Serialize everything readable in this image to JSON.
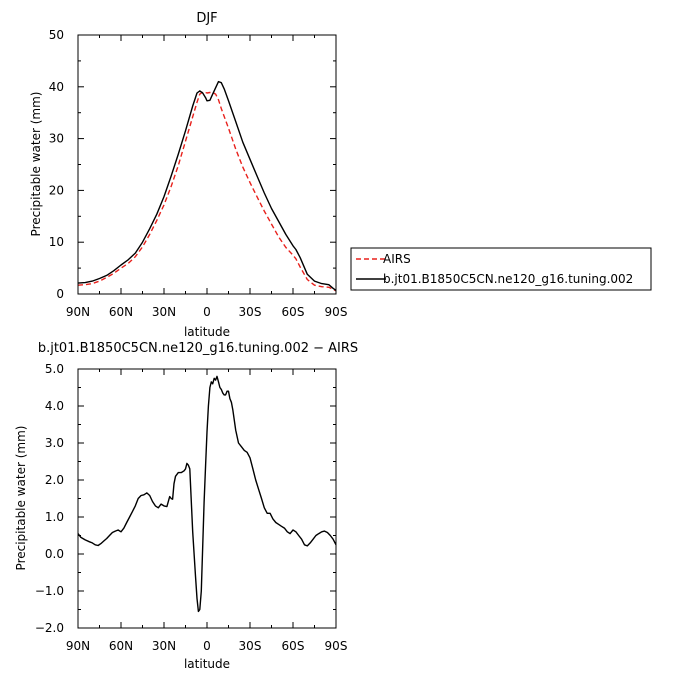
{
  "chart_data": [
    {
      "type": "line",
      "title": "DJF",
      "xlabel": "latitude",
      "ylabel": "Precipitable water  (mm)",
      "x_tick_labels": [
        "90N",
        "60N",
        "30N",
        "0",
        "30S",
        "60S",
        "90S"
      ],
      "x_tick_values": [
        90,
        60,
        30,
        0,
        -30,
        -60,
        -90
      ],
      "xlim": [
        90,
        -90
      ],
      "ylim": [
        0,
        50
      ],
      "y_ticks": [
        "0",
        "10",
        "20",
        "30",
        "40",
        "50"
      ],
      "legend_position": "right",
      "series": [
        {
          "name": "AIRS",
          "color": "#e8211c",
          "dash": "dashed",
          "x": [
            90,
            85,
            80,
            75,
            70,
            65,
            60,
            55,
            50,
            45,
            40,
            35,
            30,
            25,
            20,
            15,
            10,
            7,
            5,
            3,
            1,
            0,
            -2,
            -4,
            -6,
            -8,
            -10,
            -15,
            -20,
            -25,
            -30,
            -35,
            -40,
            -45,
            -50,
            -55,
            -60,
            -62,
            -65,
            -70,
            -75,
            -80,
            -85,
            -88,
            -90
          ],
          "y": [
            1.7,
            1.8,
            2.0,
            2.5,
            3.2,
            4.0,
            5.0,
            5.9,
            7.2,
            9.1,
            11.5,
            14.2,
            17.2,
            20.8,
            24.8,
            29.5,
            34.2,
            37.0,
            38.6,
            39.0,
            38.9,
            38.8,
            38.9,
            38.9,
            38.6,
            37.5,
            35.8,
            32.0,
            28.0,
            24.5,
            21.5,
            18.7,
            16.0,
            13.5,
            11.0,
            9.0,
            7.5,
            6.8,
            5.2,
            2.8,
            1.7,
            1.4,
            1.3,
            0.9,
            0.6
          ]
        },
        {
          "name": "b.jt01.B1850C5CN.ne120_g16.tuning.002",
          "color": "#000000",
          "dash": "solid",
          "x": [
            90,
            85,
            80,
            75,
            70,
            65,
            60,
            55,
            50,
            45,
            40,
            35,
            30,
            25,
            20,
            15,
            10,
            7,
            5,
            3,
            1,
            0,
            -2,
            -4,
            -6,
            -8,
            -10,
            -12,
            -15,
            -20,
            -25,
            -30,
            -35,
            -40,
            -45,
            -50,
            -55,
            -60,
            -62,
            -65,
            -70,
            -75,
            -80,
            -85,
            -88,
            -90
          ],
          "y": [
            2.1,
            2.2,
            2.5,
            3.0,
            3.6,
            4.5,
            5.6,
            6.6,
            7.9,
            10.0,
            12.6,
            15.4,
            18.8,
            22.8,
            27.0,
            31.5,
            36.3,
            38.8,
            39.2,
            38.8,
            37.9,
            37.3,
            37.4,
            38.6,
            39.8,
            41.0,
            40.8,
            39.6,
            37.3,
            33.3,
            29.3,
            26.0,
            22.7,
            19.5,
            16.5,
            14.0,
            11.5,
            9.3,
            8.6,
            7.0,
            3.8,
            2.5,
            2.0,
            1.8,
            1.1,
            0.7
          ]
        }
      ]
    },
    {
      "type": "line",
      "title": "b.jt01.B1850C5CN.ne120_g16.tuning.002 − AIRS",
      "xlabel": "latitude",
      "ylabel": "Precipitable water  (mm)",
      "x_tick_labels": [
        "90N",
        "60N",
        "30N",
        "0",
        "30S",
        "60S",
        "90S"
      ],
      "x_tick_values": [
        90,
        60,
        30,
        0,
        -30,
        -60,
        -90
      ],
      "xlim": [
        90,
        -90
      ],
      "ylim": [
        -2,
        5
      ],
      "y_ticks": [
        "−2.0",
        "−1.0",
        "0.0",
        "1.0",
        "2.0",
        "3.0",
        "4.0",
        "5.0"
      ],
      "series": [
        {
          "color": "#000000",
          "dash": "solid",
          "x": [
            90,
            88,
            85,
            82,
            80,
            78,
            76,
            74,
            72,
            70,
            68,
            66,
            64,
            62,
            60,
            58,
            56,
            54,
            52,
            50,
            48,
            46,
            44,
            42,
            40,
            38,
            36,
            34,
            32,
            30,
            28,
            26,
            25,
            24,
            23,
            22,
            20,
            18,
            16,
            15,
            14,
            13,
            12,
            10,
            9,
            8,
            7,
            6,
            5,
            4,
            3,
            2,
            1,
            0,
            -1,
            -2,
            -3,
            -4,
            -5,
            -6,
            -7,
            -8,
            -9,
            -10,
            -11,
            -12,
            -13,
            -14,
            -15,
            -16,
            -17,
            -18,
            -20,
            -22,
            -24,
            -26,
            -28,
            -30,
            -32,
            -34,
            -36,
            -38,
            -40,
            -42,
            -44,
            -46,
            -48,
            -50,
            -52,
            -54,
            -56,
            -58,
            -60,
            -62,
            -64,
            -66,
            -68,
            -70,
            -72,
            -74,
            -76,
            -78,
            -80,
            -82,
            -84,
            -86,
            -88,
            -90
          ],
          "y": [
            0.55,
            0.45,
            0.38,
            0.33,
            0.3,
            0.25,
            0.23,
            0.28,
            0.35,
            0.42,
            0.5,
            0.58,
            0.62,
            0.65,
            0.6,
            0.7,
            0.85,
            1.0,
            1.15,
            1.3,
            1.5,
            1.58,
            1.6,
            1.65,
            1.58,
            1.42,
            1.3,
            1.25,
            1.35,
            1.3,
            1.28,
            1.55,
            1.5,
            1.48,
            1.9,
            2.1,
            2.2,
            2.2,
            2.25,
            2.3,
            2.45,
            2.4,
            2.3,
            0.6,
            0.0,
            -0.6,
            -1.2,
            -1.55,
            -1.5,
            -1.0,
            0.2,
            1.4,
            2.4,
            3.3,
            4.0,
            4.5,
            4.65,
            4.6,
            4.75,
            4.7,
            4.8,
            4.65,
            4.5,
            4.45,
            4.35,
            4.3,
            4.3,
            4.4,
            4.4,
            4.2,
            4.1,
            3.9,
            3.35,
            3.0,
            2.9,
            2.8,
            2.75,
            2.6,
            2.3,
            2.0,
            1.75,
            1.5,
            1.25,
            1.1,
            1.1,
            0.95,
            0.85,
            0.8,
            0.75,
            0.7,
            0.6,
            0.55,
            0.65,
            0.6,
            0.5,
            0.4,
            0.25,
            0.22,
            0.3,
            0.4,
            0.5,
            0.55,
            0.6,
            0.62,
            0.58,
            0.5,
            0.4,
            0.25
          ]
        }
      ]
    }
  ]
}
